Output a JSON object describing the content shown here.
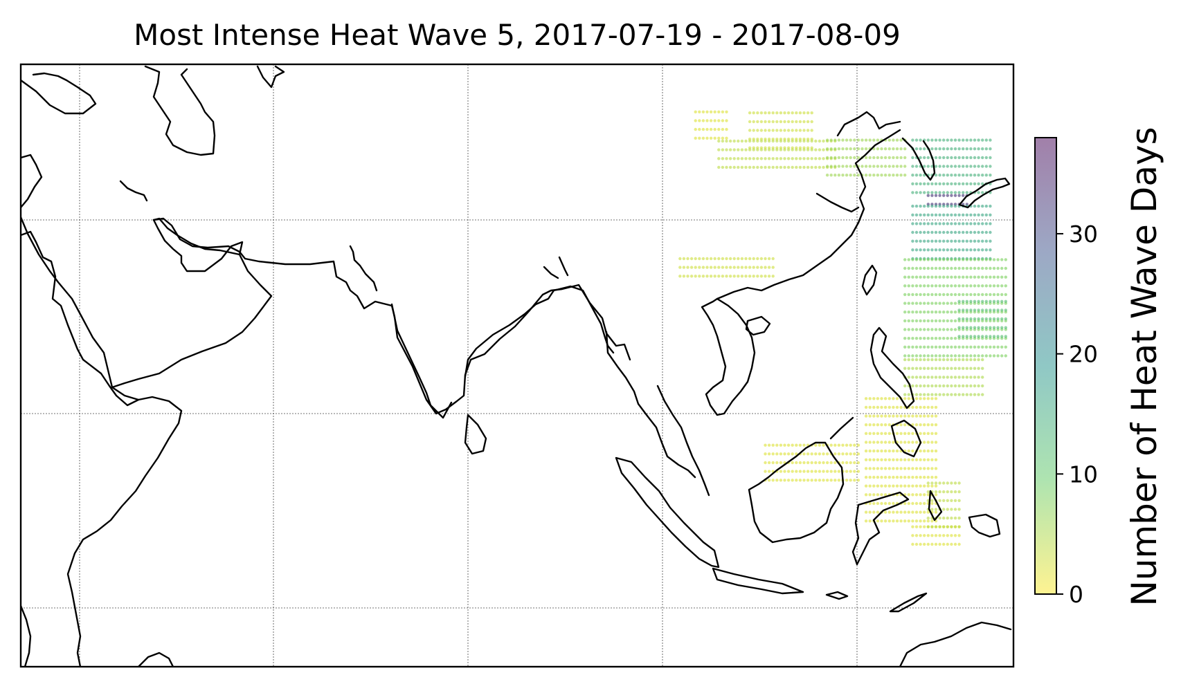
{
  "title": "Most Intense Heat Wave 5, 2017-07-19 - 2017-08-09",
  "colorbar": {
    "label": "Number of Heat Wave Days",
    "min": 0,
    "max": 38,
    "ticks": [
      {
        "value": 0,
        "label": "0"
      },
      {
        "value": 10,
        "label": "10"
      },
      {
        "value": 20,
        "label": "20"
      },
      {
        "value": 30,
        "label": "30"
      }
    ],
    "colormap": "viridis_r",
    "alpha": 0.5
  },
  "chart_data": {
    "type": "heatmap",
    "title": "Most Intense Heat Wave 5, 2017-07-19 - 2017-08-09",
    "map_extent": {
      "lon": [
        32,
        160
      ],
      "lat": [
        -14,
        17
      ]
    },
    "grid_lines": {
      "on": true,
      "lon": [
        40,
        65,
        90,
        115,
        140
      ],
      "lat": [
        -10,
        0,
        10
      ]
    },
    "legend_placement": "right",
    "value_label": "Number of Heat Wave Days",
    "regions": [
      {
        "lon": [
          119,
          123
        ],
        "lat": [
          13.2,
          14.8
        ],
        "value": 2
      },
      {
        "lon": [
          126,
          134
        ],
        "lat": [
          12.7,
          14.8
        ],
        "value": 3
      },
      {
        "lon": [
          122,
          137
        ],
        "lat": [
          11.7,
          13.2
        ],
        "value": 4
      },
      {
        "lon": [
          136,
          146
        ],
        "lat": [
          11.3,
          13.2
        ],
        "value": 6
      },
      {
        "lon": [
          147,
          157
        ],
        "lat": [
          10.4,
          13.2
        ],
        "value": 14
      },
      {
        "lon": [
          149,
          154
        ],
        "lat": [
          9.8,
          10.6
        ],
        "value": 33
      },
      {
        "lon": [
          147,
          157
        ],
        "lat": [
          7.0,
          10.0
        ],
        "value": 16
      },
      {
        "lon": [
          117,
          129
        ],
        "lat": [
          6.1,
          7.2
        ],
        "value": 3
      },
      {
        "lon": [
          146,
          159
        ],
        "lat": [
          2.0,
          7.2
        ],
        "value": 8
      },
      {
        "lon": [
          153,
          159
        ],
        "lat": [
          3.0,
          5.0
        ],
        "value": 12
      },
      {
        "lon": [
          146,
          156
        ],
        "lat": [
          0.0,
          2.2
        ],
        "value": 5
      },
      {
        "lon": [
          141,
          150
        ],
        "lat": [
          -6.5,
          0.2
        ],
        "value": 2
      },
      {
        "lon": [
          147,
          153
        ],
        "lat": [
          -7.7,
          -6.5
        ],
        "value": 2
      },
      {
        "lon": [
          128,
          140
        ],
        "lat": [
          -4.4,
          -2.5
        ],
        "value": 2
      },
      {
        "lon": [
          149,
          153
        ],
        "lat": [
          -6.8,
          -4.5
        ],
        "value": 4
      }
    ]
  }
}
